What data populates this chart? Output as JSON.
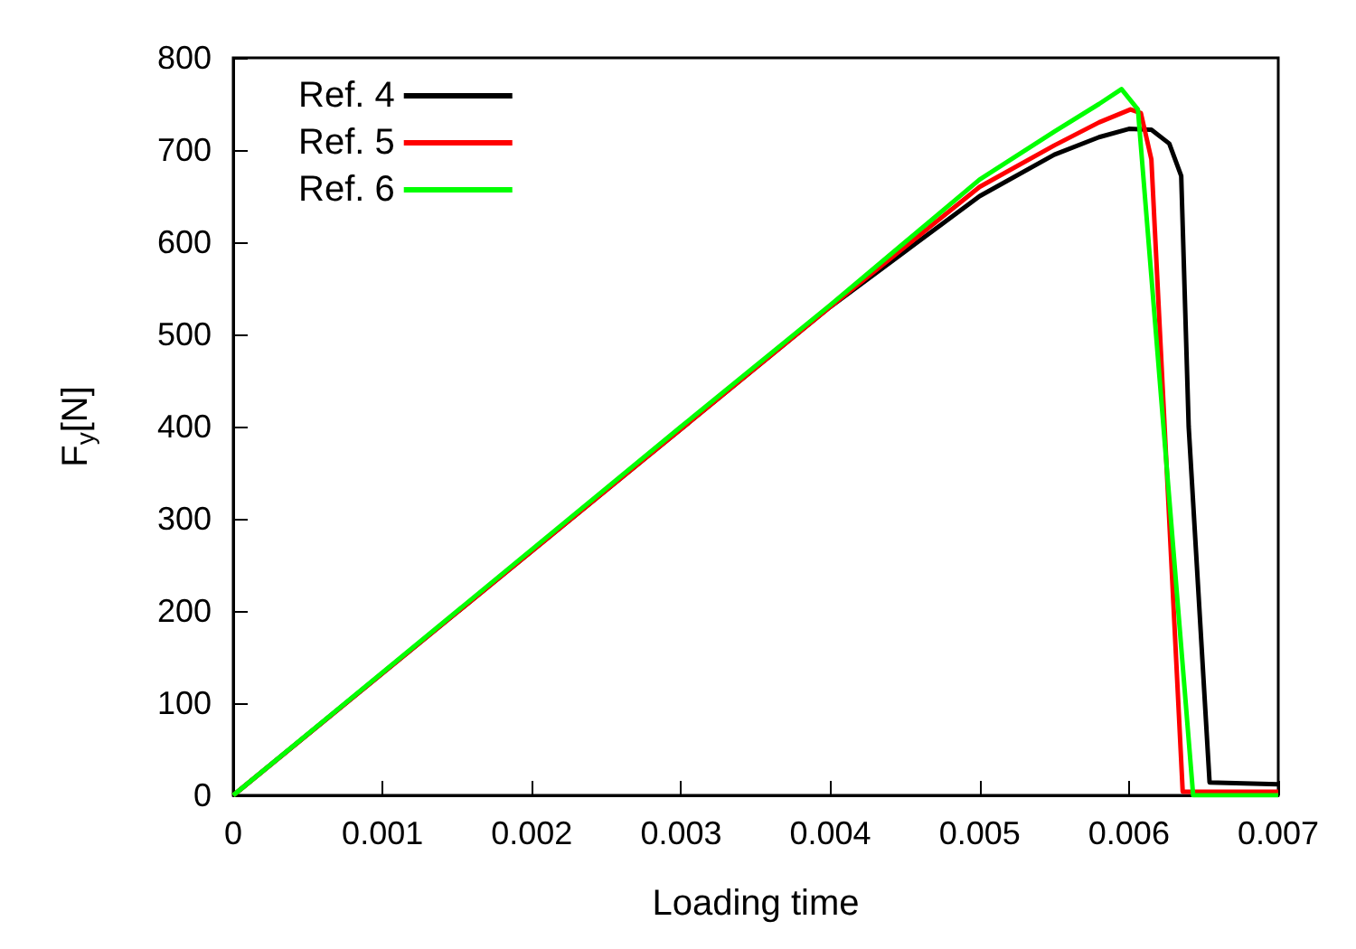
{
  "chart_data": {
    "type": "line",
    "xlabel": "Loading time",
    "ylabel": "F$_{y}$[N]",
    "xlim": [
      0,
      0.007
    ],
    "xticks": [
      {
        "value": 0,
        "label": "0"
      },
      0.001,
      0.002,
      0.003,
      0.004,
      0.005,
      0.006,
      0.007
    ],
    "ylim": [
      0,
      800
    ],
    "yticks": [
      0,
      100,
      200,
      300,
      400,
      500,
      600,
      700,
      800
    ],
    "grid": false,
    "legend": "top left",
    "marker": "none",
    "line_style": "solid",
    "series": [
      {
        "name": "Ref. 4",
        "color": "#000000",
        "x": [
          0,
          0.004,
          0.0045,
          0.005,
          0.0055,
          0.0058,
          0.006,
          0.00615,
          0.00627,
          0.00635,
          0.0064,
          0.00654,
          0.007
        ],
        "values": [
          0,
          530,
          590,
          650,
          695,
          714,
          723,
          722,
          707,
          672,
          400,
          14,
          12
        ]
      },
      {
        "name": "Ref. 5",
        "color": "#ff0000",
        "x": [
          0,
          0.004,
          0.0045,
          0.005,
          0.0055,
          0.0058,
          0.00601,
          0.00608,
          0.00615,
          0.00636,
          0.007
        ],
        "values": [
          0,
          530,
          595,
          660,
          705,
          730,
          744,
          740,
          690,
          4,
          4
        ]
      },
      {
        "name": "Ref. 6",
        "color": "#00ff00",
        "x": [
          0,
          0.003,
          0.004,
          0.0045,
          0.005,
          0.0055,
          0.0058,
          0.00595,
          0.00606,
          0.00643,
          0.007
        ],
        "values": [
          0,
          400,
          532,
          600,
          668,
          720,
          750,
          766,
          744,
          0,
          0
        ]
      }
    ]
  }
}
